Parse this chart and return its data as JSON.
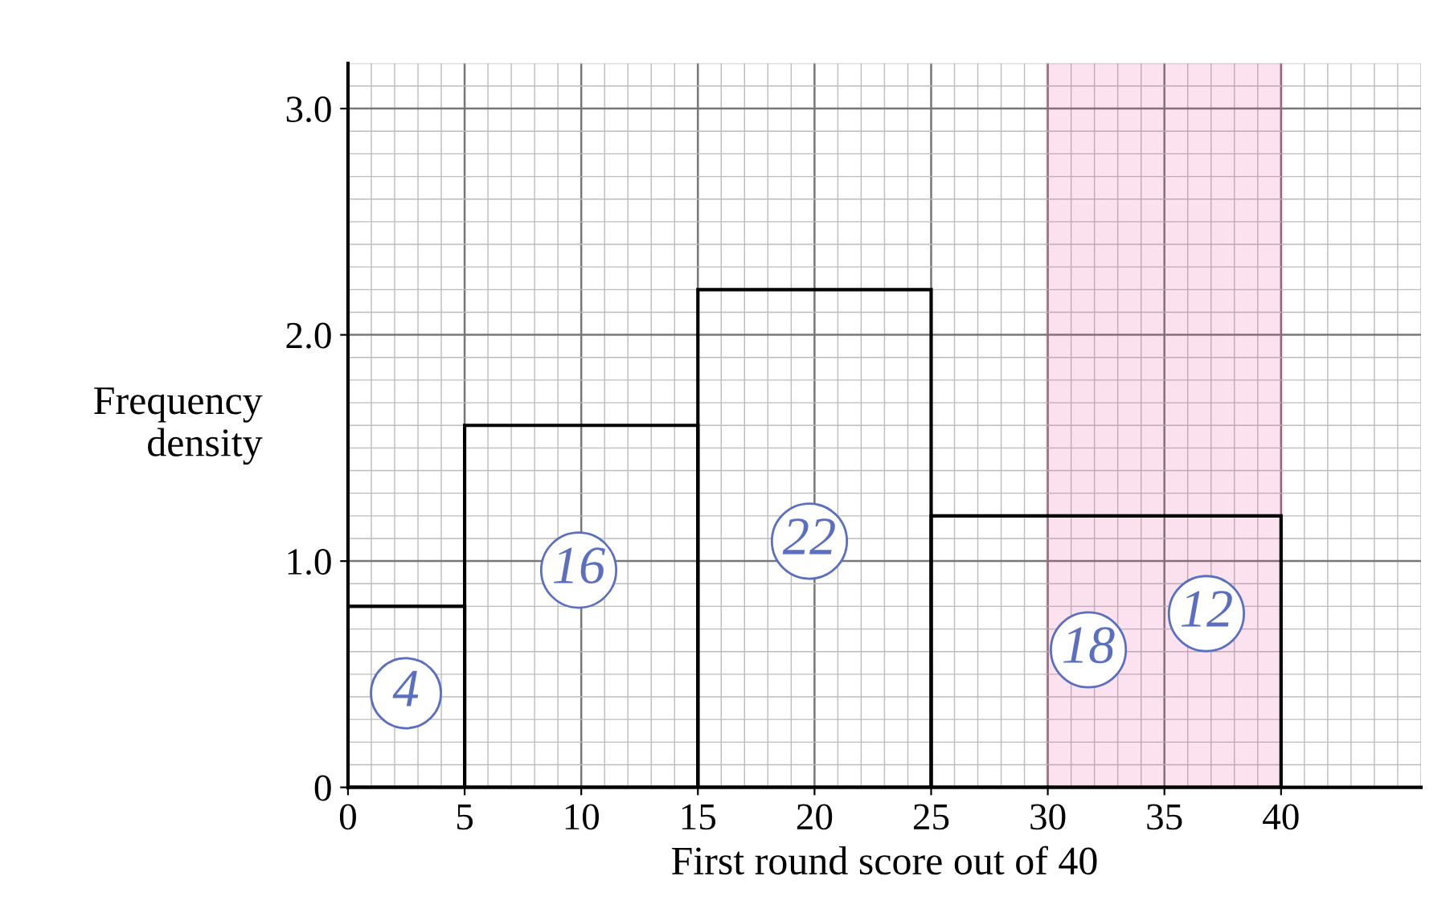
{
  "chart_data": {
    "type": "histogram",
    "xlabel": "First round score out of 40",
    "ylabel": "Frequency\ndensity",
    "bins": [
      0,
      5,
      15,
      25,
      40
    ],
    "values": [
      0.8,
      1.6,
      2.2,
      1.2
    ],
    "color": "#000000",
    "xlim": [
      0,
      46
    ],
    "ylim": [
      0,
      3.2
    ],
    "xticks": [
      0,
      5,
      10,
      15,
      20,
      25,
      30,
      35,
      40
    ],
    "yticks": [
      0,
      {
        "value": 1,
        "label": "1.0"
      },
      {
        "value": 2,
        "label": "2.0"
      },
      {
        "value": 3,
        "label": "3.0"
      }
    ],
    "grid": true,
    "bands": [
      {
        "axis": "x",
        "from": 30,
        "to": 40,
        "color": "#e8408a"
      }
    ],
    "annotations": [
      "4",
      "16",
      "22",
      "18",
      "12"
    ]
  }
}
